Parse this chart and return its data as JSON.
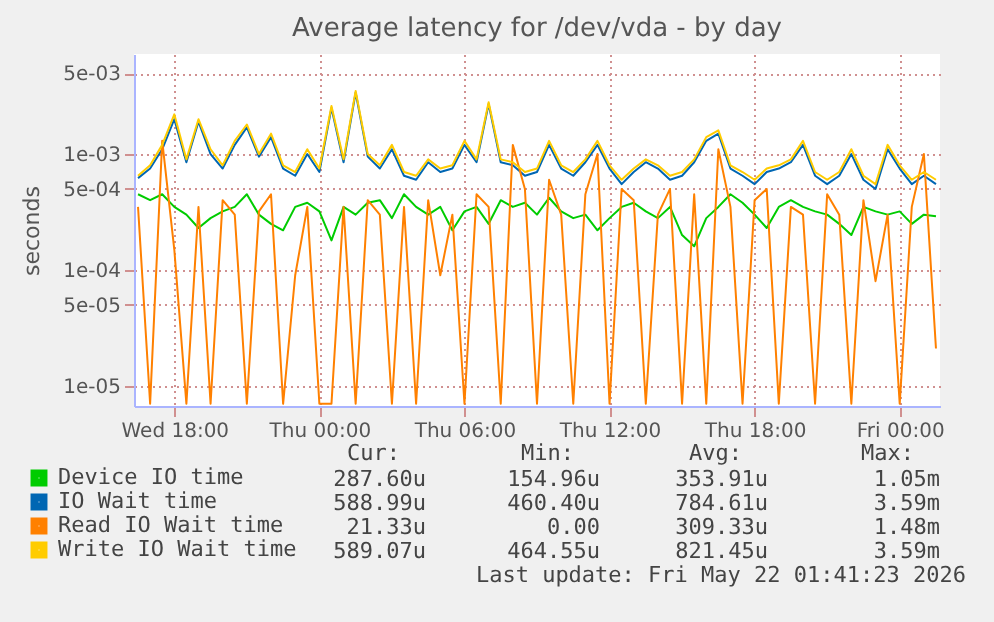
{
  "chart_data": {
    "type": "line",
    "title": "Average latency for /dev/vda - by day",
    "ylabel": "seconds",
    "log": "y",
    "grid": true,
    "legend": "bottom left",
    "marker": "none",
    "line_style": "solid",
    "x": [
      "2026-05-20T16:30",
      "2026-05-20T17:00",
      "2026-05-20T17:30",
      "2026-05-20T18:00",
      "2026-05-20T18:30",
      "2026-05-20T19:00",
      "2026-05-20T19:30",
      "2026-05-20T20:00",
      "2026-05-20T20:30",
      "2026-05-20T21:00",
      "2026-05-20T21:30",
      "2026-05-20T22:00",
      "2026-05-20T22:30",
      "2026-05-20T23:00",
      "2026-05-20T23:30",
      "2026-05-21T00:00",
      "2026-05-21T00:30",
      "2026-05-21T01:00",
      "2026-05-21T01:30",
      "2026-05-21T02:00",
      "2026-05-21T02:30",
      "2026-05-21T03:00",
      "2026-05-21T03:30",
      "2026-05-21T04:00",
      "2026-05-21T04:30",
      "2026-05-21T05:00",
      "2026-05-21T05:30",
      "2026-05-21T06:00",
      "2026-05-21T06:30",
      "2026-05-21T07:00",
      "2026-05-21T07:30",
      "2026-05-21T08:00",
      "2026-05-21T08:30",
      "2026-05-21T09:00",
      "2026-05-21T09:30",
      "2026-05-21T10:00",
      "2026-05-21T10:30",
      "2026-05-21T11:00",
      "2026-05-21T11:30",
      "2026-05-21T12:00",
      "2026-05-21T12:30",
      "2026-05-21T13:00",
      "2026-05-21T13:30",
      "2026-05-21T14:00",
      "2026-05-21T14:30",
      "2026-05-21T15:00",
      "2026-05-21T15:30",
      "2026-05-21T16:00",
      "2026-05-21T16:30",
      "2026-05-21T17:00",
      "2026-05-21T17:30",
      "2026-05-21T18:00",
      "2026-05-21T18:30",
      "2026-05-21T19:00",
      "2026-05-21T19:30",
      "2026-05-21T20:00",
      "2026-05-21T20:30",
      "2026-05-21T21:00",
      "2026-05-21T21:30",
      "2026-05-21T22:00",
      "2026-05-21T22:30",
      "2026-05-21T23:00",
      "2026-05-21T23:30",
      "2026-05-22T00:00",
      "2026-05-22T00:30",
      "2026-05-22T01:00",
      "2026-05-22T01:30"
    ],
    "xlim": [
      "2026-05-20T16:20",
      "2026-05-22T01:40"
    ],
    "xticks": [
      {
        "value": "2026-05-20T18:00",
        "label": "Wed 18:00"
      },
      {
        "value": "2026-05-21T00:00",
        "label": "Thu 00:00"
      },
      {
        "value": "2026-05-21T06:00",
        "label": "Thu 06:00"
      },
      {
        "value": "2026-05-21T12:00",
        "label": "Thu 12:00"
      },
      {
        "value": "2026-05-21T18:00",
        "label": "Thu 18:00"
      },
      {
        "value": "2026-05-22T00:00",
        "label": "Fri 00:00"
      }
    ],
    "ylim": [
      6.7e-06,
      0.0073
    ],
    "yticks": [
      {
        "value": 0.005,
        "label": "5e-03"
      },
      {
        "value": 0.001,
        "label": "1e-03"
      },
      {
        "value": 0.0005,
        "label": "5e-04"
      },
      {
        "value": 0.0001,
        "label": "1e-04"
      },
      {
        "value": 5e-05,
        "label": "5e-05"
      },
      {
        "value": 1e-05,
        "label": "1e-05"
      }
    ],
    "series": [
      {
        "name": "Device IO time",
        "color": "#00cc00",
        "values": [
          0.00045,
          0.0004,
          0.00045,
          0.00035,
          0.0003,
          0.00023,
          0.00028,
          0.00032,
          0.00035,
          0.00045,
          0.0003,
          0.00025,
          0.00022,
          0.00035,
          0.00038,
          0.00032,
          0.00018,
          0.00035,
          0.0003,
          0.00038,
          0.0004,
          0.00028,
          0.00045,
          0.00035,
          0.0003,
          0.00035,
          0.00022,
          0.00032,
          0.00035,
          0.00025,
          0.0004,
          0.00035,
          0.00038,
          0.0003,
          0.00042,
          0.00032,
          0.00028,
          0.0003,
          0.00022,
          0.00028,
          0.00035,
          0.00038,
          0.00032,
          0.00028,
          0.00035,
          0.0002,
          0.00016,
          0.00028,
          0.00035,
          0.00045,
          0.00038,
          0.0003,
          0.00023,
          0.00035,
          0.0004,
          0.00035,
          0.00032,
          0.0003,
          0.00025,
          0.0002,
          0.00035,
          0.00032,
          0.0003,
          0.00032,
          0.00025,
          0.0003,
          0.00029
        ]
      },
      {
        "name": "IO Wait time",
        "color": "#0066b3",
        "values": [
          0.00062,
          0.00075,
          0.0011,
          0.002,
          0.00085,
          0.0019,
          0.001,
          0.00075,
          0.0012,
          0.0017,
          0.00095,
          0.0014,
          0.00075,
          0.00065,
          0.001,
          0.0007,
          0.0025,
          0.00085,
          0.0034,
          0.00095,
          0.00075,
          0.0011,
          0.00065,
          0.0006,
          0.00085,
          0.0007,
          0.00075,
          0.0012,
          0.00085,
          0.0027,
          0.00085,
          0.0008,
          0.00065,
          0.0007,
          0.0012,
          0.00075,
          0.00065,
          0.00085,
          0.0012,
          0.00075,
          0.00055,
          0.0007,
          0.00085,
          0.00075,
          0.0006,
          0.00065,
          0.00085,
          0.0013,
          0.0015,
          0.00075,
          0.00065,
          0.00055,
          0.0007,
          0.00075,
          0.00085,
          0.0012,
          0.00065,
          0.00055,
          0.00065,
          0.001,
          0.0006,
          0.0005,
          0.0011,
          0.00075,
          0.00055,
          0.00065,
          0.00055
        ]
      },
      {
        "name": "Read IO Wait time",
        "color": "#ff8000",
        "values": [
          0.00035,
          7e-06,
          0.0013,
          0.00015,
          7e-06,
          0.00035,
          7e-06,
          0.0004,
          0.0003,
          7e-06,
          0.00032,
          0.00045,
          7e-06,
          9e-05,
          0.00035,
          7e-06,
          7e-06,
          0.00035,
          7e-06,
          0.0004,
          0.0003,
          7e-06,
          0.00035,
          7e-06,
          0.0004,
          9e-05,
          0.0003,
          7e-06,
          0.00045,
          0.00035,
          7e-06,
          0.0012,
          0.0005,
          7e-06,
          0.0006,
          0.0003,
          7e-06,
          0.00045,
          0.001,
          7e-06,
          0.0005,
          0.0004,
          7e-06,
          0.0003,
          0.0005,
          7e-06,
          0.00045,
          7e-06,
          0.0011,
          0.00035,
          7e-06,
          0.0004,
          0.0005,
          7e-06,
          0.00035,
          0.0003,
          7e-06,
          0.00045,
          0.0003,
          7e-06,
          0.0004,
          8e-05,
          0.0003,
          7e-06,
          0.00035,
          0.001,
          2.1e-05
        ]
      },
      {
        "name": "Write IO Wait time",
        "color": "#ffcc00",
        "values": [
          0.00065,
          0.0008,
          0.0012,
          0.0022,
          0.0009,
          0.002,
          0.0011,
          0.0008,
          0.0013,
          0.0018,
          0.001,
          0.0015,
          0.0008,
          0.0007,
          0.0011,
          0.00075,
          0.0026,
          0.0009,
          0.0035,
          0.001,
          0.0008,
          0.0012,
          0.0007,
          0.00065,
          0.0009,
          0.00075,
          0.0008,
          0.0013,
          0.0009,
          0.0028,
          0.0009,
          0.00085,
          0.0007,
          0.00075,
          0.0013,
          0.0008,
          0.0007,
          0.0009,
          0.0013,
          0.0008,
          0.0006,
          0.00075,
          0.0009,
          0.0008,
          0.00065,
          0.0007,
          0.0009,
          0.0014,
          0.0016,
          0.0008,
          0.0007,
          0.0006,
          0.00075,
          0.0008,
          0.0009,
          0.0013,
          0.0007,
          0.0006,
          0.0007,
          0.0011,
          0.00065,
          0.00055,
          0.0012,
          0.0008,
          0.0006,
          0.0007,
          0.0006
        ]
      }
    ],
    "annotations": [
      "Cur:",
      "Min:",
      "Avg:",
      "Max:",
      "287.60u",
      "154.96u",
      "353.91u",
      "1.05m",
      "588.99u",
      "460.40u",
      "784.61u",
      "3.59m",
      "21.33u",
      "0.00",
      "309.33u",
      "1.48m",
      "589.07u",
      "464.55u",
      "821.45u",
      "3.59m",
      "Last update: Fri May 22 01:41:23 2026"
    ]
  }
}
